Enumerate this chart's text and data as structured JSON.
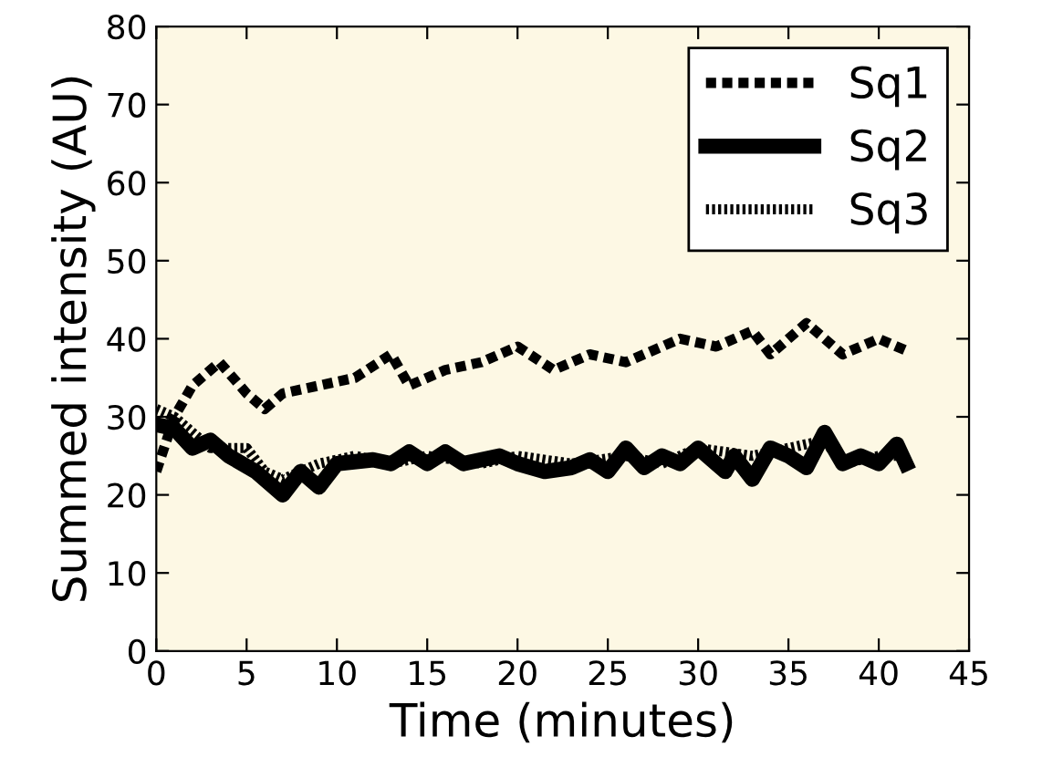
{
  "chart_data": {
    "type": "line",
    "xlabel": "Time (minutes)",
    "ylabel": "Summed intensity (AU)",
    "xlim": [
      0,
      45
    ],
    "ylim": [
      0,
      80
    ],
    "xticks": [
      0,
      5,
      10,
      15,
      20,
      25,
      30,
      35,
      40,
      45
    ],
    "yticks": [
      0,
      10,
      20,
      30,
      40,
      50,
      60,
      70,
      80
    ],
    "grid": false,
    "legend": "top right",
    "series": [
      {
        "name": "Sq1",
        "color": "#000000",
        "line_style": "dashed",
        "x": [
          0,
          1,
          2,
          3.5,
          5,
          6,
          7,
          9,
          11,
          13,
          14,
          16,
          18,
          20,
          22,
          24,
          26,
          29,
          31,
          33,
          34,
          36,
          38,
          40,
          41.5
        ],
        "values": [
          23,
          30,
          34,
          37,
          33,
          31,
          33,
          34,
          35,
          38,
          34,
          36,
          37,
          39,
          36,
          38,
          37,
          40,
          39,
          41,
          38,
          42,
          38,
          40,
          38.5
        ]
      },
      {
        "name": "Sq2",
        "color": "#000000",
        "line_style": "solid",
        "x": [
          0,
          1,
          2,
          3,
          4,
          5.5,
          7,
          8,
          9,
          10,
          12,
          13,
          14,
          15,
          16,
          17,
          19,
          20,
          21.5,
          23,
          24,
          25,
          26,
          27,
          28,
          29,
          30,
          31.5,
          32,
          33,
          34,
          35,
          36,
          37,
          38,
          39,
          40,
          41,
          41.5
        ],
        "values": [
          29,
          28.5,
          26,
          27,
          25,
          23,
          20,
          23,
          21,
          24,
          24.5,
          24,
          25.5,
          24,
          25.5,
          24,
          25,
          24,
          23,
          23.5,
          24.5,
          23,
          26,
          23.5,
          25,
          24,
          26,
          23,
          25,
          22,
          26,
          25,
          23.5,
          28,
          24,
          25,
          24,
          26.5,
          24
        ]
      },
      {
        "name": "Sq3",
        "color": "#000000",
        "line_style": "dotted",
        "x": [
          0,
          1,
          2,
          3,
          5,
          6,
          7,
          9,
          11,
          13,
          15,
          18,
          20,
          23,
          26,
          28,
          30,
          33,
          35,
          37,
          38,
          40,
          41.5
        ],
        "values": [
          31,
          30,
          28,
          26,
          26,
          23,
          22,
          24,
          25,
          24,
          25,
          24,
          25,
          24,
          25,
          24,
          26,
          25,
          26,
          27,
          24,
          25,
          25
        ]
      }
    ]
  }
}
